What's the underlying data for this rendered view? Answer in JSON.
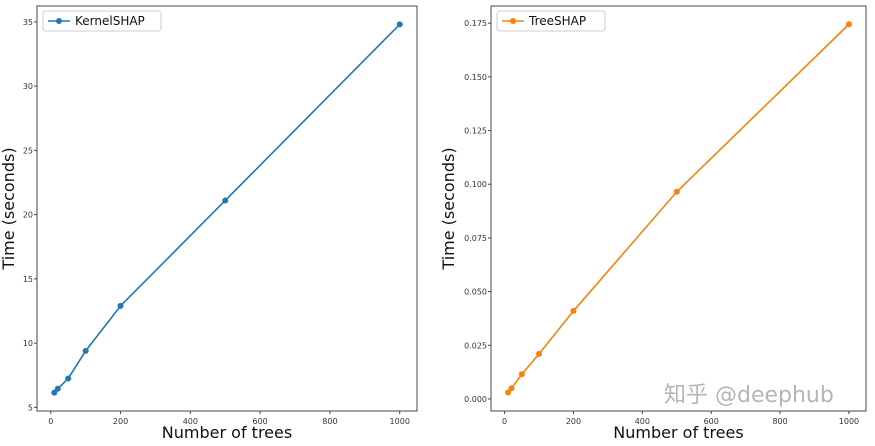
{
  "watermark": "知乎 @deephub",
  "chart_data": [
    {
      "type": "line",
      "xlabel": "Number of trees",
      "ylabel": "Time (seconds)",
      "x": [
        10,
        20,
        50,
        100,
        200,
        500,
        1000
      ],
      "series": [
        {
          "name": "KernelSHAP",
          "color": "#1f77b4",
          "values": [
            6.15,
            6.45,
            7.25,
            9.4,
            12.9,
            21.1,
            34.8
          ]
        }
      ],
      "xlim": [
        -39.5,
        1049.5
      ],
      "ylim": [
        4.72,
        36.23
      ],
      "xticks": [
        0,
        200,
        400,
        600,
        800,
        1000
      ],
      "yticks": [
        5,
        10,
        15,
        20,
        25,
        30,
        35
      ],
      "ytick_labels": [
        "5",
        "10",
        "15",
        "20",
        "25",
        "30",
        "35"
      ],
      "legend": "top-left",
      "grid": false
    },
    {
      "type": "line",
      "xlabel": "Number of trees",
      "ylabel": "Time (seconds)",
      "x": [
        10,
        20,
        50,
        100,
        200,
        500,
        1000
      ],
      "series": [
        {
          "name": "TreeSHAP",
          "color": "#ff7f0e",
          "values": [
            0.003,
            0.005,
            0.0115,
            0.021,
            0.041,
            0.0965,
            0.1745
          ]
        }
      ],
      "xlim": [
        -39.5,
        1049.5
      ],
      "ylim": [
        -0.0056,
        0.183
      ],
      "xticks": [
        0,
        200,
        400,
        600,
        800,
        1000
      ],
      "yticks": [
        0,
        0.025,
        0.05,
        0.075,
        0.1,
        0.125,
        0.15,
        0.175
      ],
      "ytick_labels": [
        "0.000",
        "0.025",
        "0.050",
        "0.075",
        "0.100",
        "0.125",
        "0.150",
        "0.175"
      ],
      "legend": "top-left",
      "grid": false
    }
  ]
}
